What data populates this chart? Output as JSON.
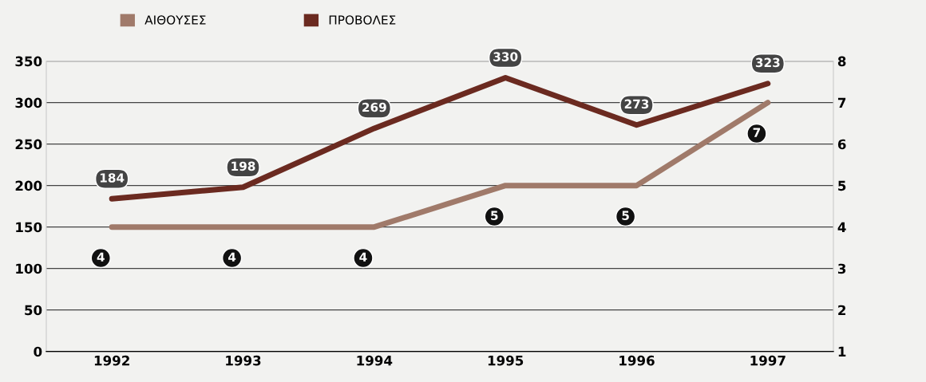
{
  "chart_data": {
    "type": "line",
    "categories": [
      "1992",
      "1993",
      "1994",
      "1995",
      "1996",
      "1997"
    ],
    "series": [
      {
        "name": "ΑΙΘΟΥΣΕΣ",
        "color": "#a07a6a",
        "values": [
          4,
          4,
          4,
          5,
          5,
          7
        ],
        "axis": "y2"
      },
      {
        "name": "ΠΡΟΒΟΛΕΣ",
        "color": "#6b2a20",
        "values": [
          184,
          198,
          269,
          330,
          273,
          323
        ]
      }
    ],
    "ylim": [
      0,
      350
    ],
    "yticks": [
      0,
      50,
      100,
      150,
      200,
      250,
      300,
      350
    ],
    "y2lim": [
      1,
      8
    ],
    "y2ticks": [
      1,
      2,
      3,
      4,
      5,
      6,
      7,
      8
    ],
    "grid": "y",
    "legend": "top left",
    "data_labels": true,
    "marker": "none",
    "line_style": "solid"
  }
}
